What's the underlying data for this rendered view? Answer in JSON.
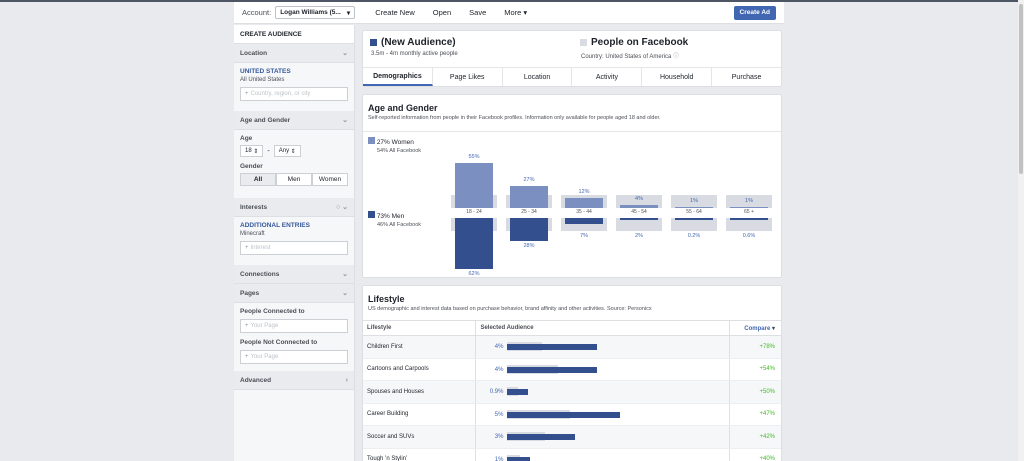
{
  "topbar": {
    "account_label": "Account:",
    "account_value": "Logan Williams (5...",
    "links": [
      "Create New",
      "Open",
      "Save",
      "More ▾"
    ],
    "create_ad": "Create Ad"
  },
  "sidebar": {
    "title": "CREATE AUDIENCE",
    "location": {
      "label": "Location",
      "country": "UNITED STATES",
      "all": "All United States",
      "placeholder": "Country, region, or city"
    },
    "age_gender": {
      "label": "Age and Gender",
      "age_label": "Age",
      "age_from": "18",
      "age_sep": "-",
      "age_to": "Any",
      "gender_label": "Gender",
      "genders": [
        "All",
        "Men",
        "Women"
      ]
    },
    "interests": {
      "label": "Interests",
      "additional": "ADDITIONAL ENTRIES",
      "entry": "Minecraft",
      "placeholder": "Interest"
    },
    "connections": "Connections",
    "pages": {
      "label": "Pages",
      "connected_label": "People Connected to",
      "connected_placeholder": "Your Page",
      "not_connected_label": "People Not Connected to",
      "not_connected_placeholder": "Your Page"
    },
    "advanced": "Advanced"
  },
  "header": {
    "audience_title": "(New Audience)",
    "audience_sub": "3.5m - 4m monthly active people",
    "compare_title": "People on Facebook",
    "compare_sub": "Country: United States of America",
    "audience_color": "#344f8e",
    "compare_color": "#d8dbe1"
  },
  "tabs": [
    "Demographics",
    "Page Likes",
    "Location",
    "Activity",
    "Household",
    "Purchase"
  ],
  "age_gender_section": {
    "title": "Age and Gender",
    "desc": "Self-reported information from people in their Facebook profiles. Information only available for people aged 18 and older.",
    "women": {
      "label": "27% Women",
      "sub": "54% All Facebook",
      "color": "#7b8fc0"
    },
    "men": {
      "label": "73% Men",
      "sub": "46% All Facebook",
      "color": "#344f8e"
    }
  },
  "chart_data": {
    "type": "bar",
    "categories": [
      "18 - 24",
      "25 - 34",
      "35 - 44",
      "45 - 54",
      "55 - 64",
      "65 +"
    ],
    "series": [
      {
        "name": "Women",
        "values": [
          55,
          27,
          12,
          4,
          1,
          1
        ],
        "labels": [
          "55%",
          "27%",
          "12%",
          "4%",
          "1%",
          "1%"
        ]
      },
      {
        "name": "Men",
        "values": [
          62,
          28,
          7,
          2,
          0.2,
          0.6
        ],
        "labels": [
          "62%",
          "28%",
          "7%",
          "2%",
          "0.2%",
          "0.6%"
        ]
      }
    ]
  },
  "lifestyle": {
    "title": "Lifestyle",
    "desc": "US demographic and interest data based on purchase behavior, brand affinity and other activities. Source: Personicx",
    "columns": [
      "Lifestyle",
      "Selected Audience",
      "Compare"
    ],
    "rows": [
      {
        "name": "Children First",
        "pct": "4%",
        "value": 4,
        "baseline": 1.9,
        "compare": "+78%"
      },
      {
        "name": "Cartoons and Carpools",
        "pct": "4%",
        "value": 4,
        "baseline": 2.8,
        "compare": "+54%"
      },
      {
        "name": "Spouses and Houses",
        "pct": "0.9%",
        "value": 0.9,
        "baseline": 0.6,
        "compare": "+50%"
      },
      {
        "name": "Career Building",
        "pct": "5%",
        "value": 5,
        "baseline": 3.5,
        "compare": "+47%"
      },
      {
        "name": "Soccer and SUVs",
        "pct": "3%",
        "value": 3,
        "baseline": 2.1,
        "compare": "+42%"
      },
      {
        "name": "Tough ’n Stylin’",
        "pct": "1%",
        "value": 1,
        "baseline": 0.7,
        "compare": "+40%"
      }
    ]
  }
}
